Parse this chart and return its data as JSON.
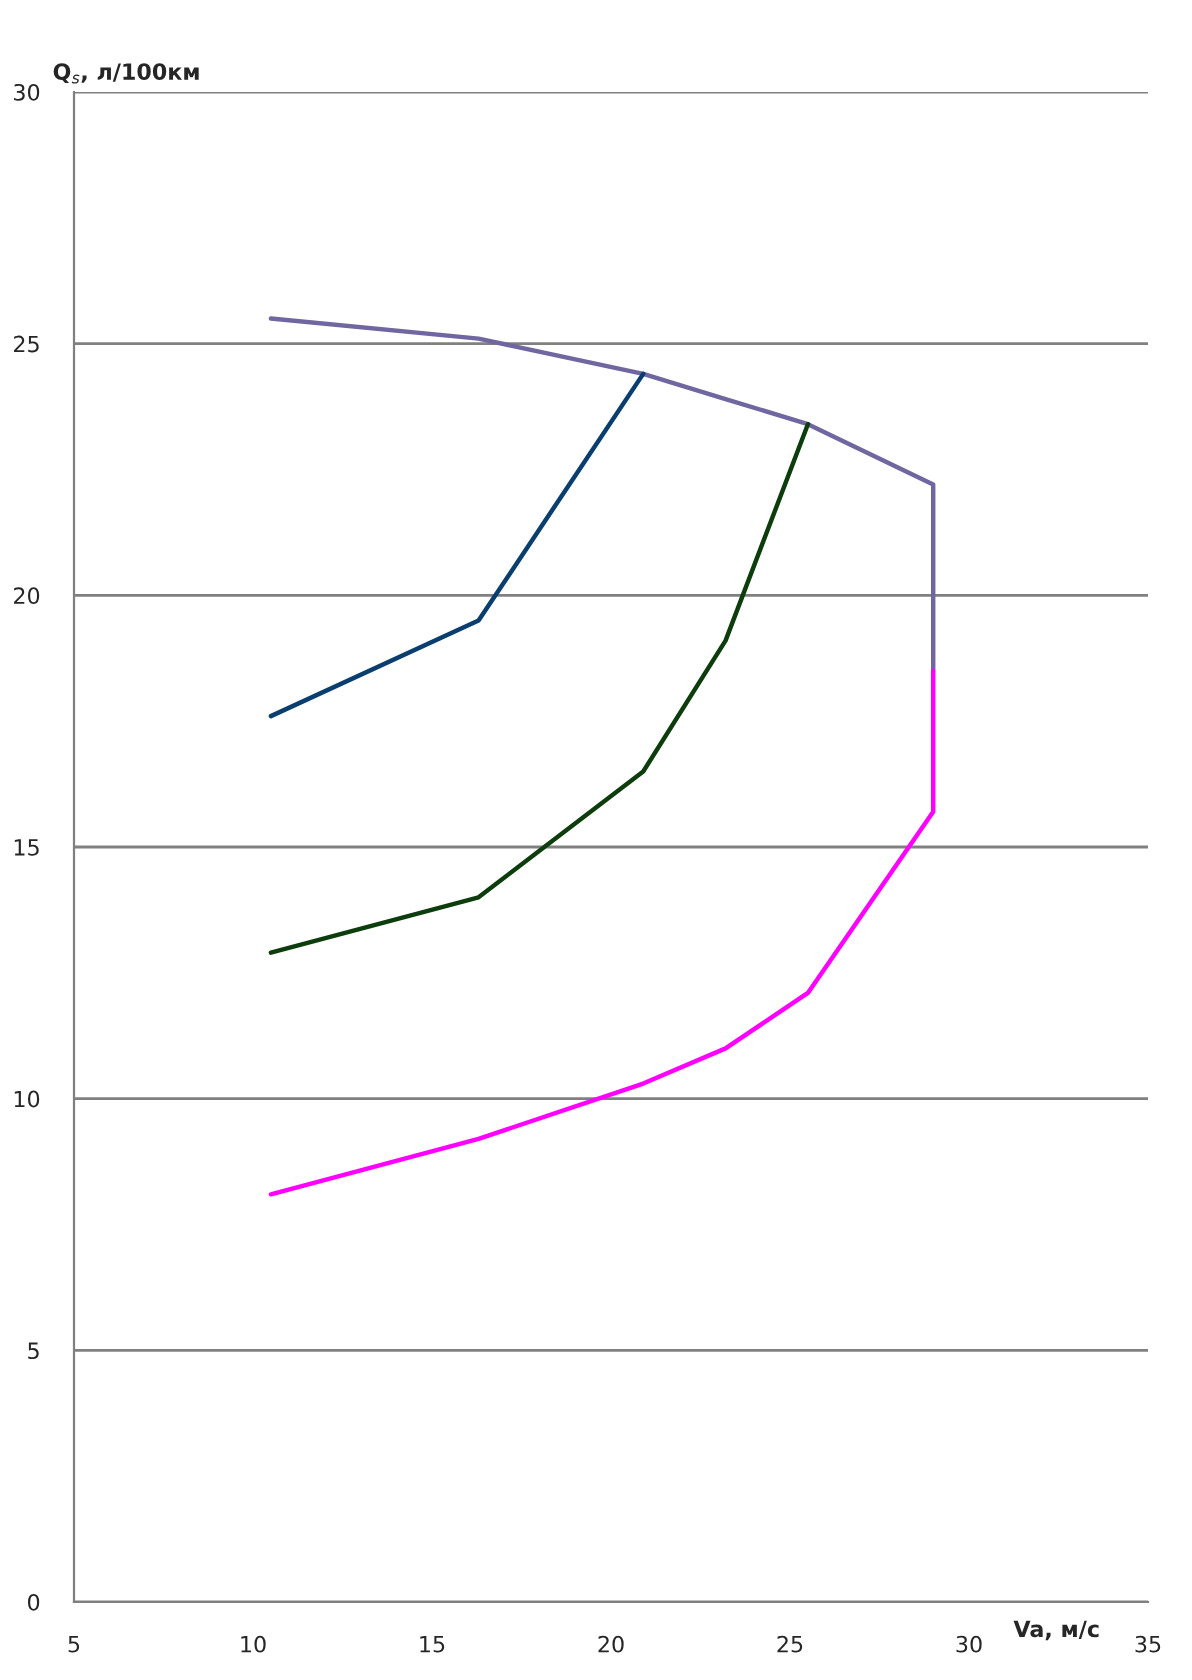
{
  "chart_data": {
    "type": "line",
    "xlabel": "Va, м/с",
    "ylabel": "Q$_{s}$, л/100км",
    "xlim": [
      5,
      35
    ],
    "xticks": [
      5,
      10,
      15,
      20,
      25,
      30,
      35
    ],
    "ylim": [
      0,
      30
    ],
    "yticks": [
      0,
      5,
      10,
      15,
      20,
      25,
      30
    ],
    "grid": "y",
    "marker": "none",
    "line_style": "solid",
    "series": [
      {
        "color": "#7067a0",
        "x": [
          10.5,
          16.3,
          20.9,
          23.2,
          25.5,
          29.0,
          29.0
        ],
        "values": [
          25.5,
          25.1,
          24.4,
          23.9,
          23.4,
          22.2,
          18.5
        ]
      },
      {
        "color": "#0a3e6e",
        "x": [
          10.5,
          16.3,
          20.9
        ],
        "values": [
          17.6,
          19.5,
          24.4
        ]
      },
      {
        "color": "#0d3d0d",
        "x": [
          10.5,
          16.3,
          20.9,
          23.2,
          25.5
        ],
        "values": [
          12.9,
          14.0,
          16.5,
          19.1,
          23.4
        ]
      },
      {
        "color": "#ff00ff",
        "x": [
          10.5,
          16.3,
          20.9,
          23.2,
          25.5,
          29.0,
          29.0
        ],
        "values": [
          8.1,
          9.2,
          10.3,
          11.0,
          12.1,
          15.7,
          18.5
        ]
      }
    ]
  }
}
